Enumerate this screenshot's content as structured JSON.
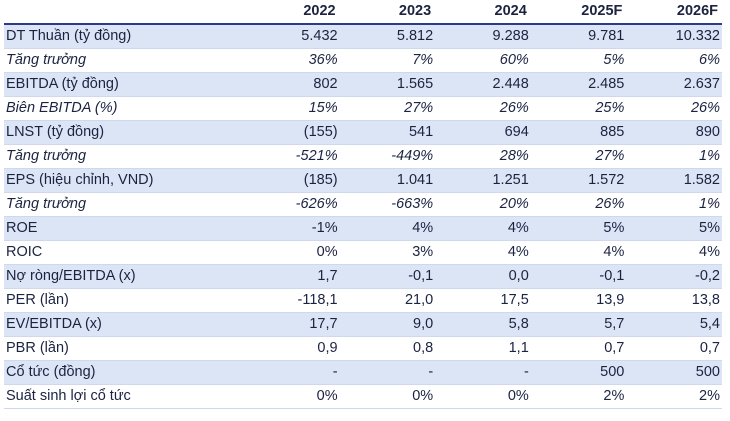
{
  "table": {
    "header": [
      "",
      "2022",
      "2023",
      "2024",
      "2025F",
      "2026F"
    ],
    "rows": [
      {
        "label": "DT Thuần (tỷ đồng)",
        "values": [
          "5.432",
          "5.812",
          "9.288",
          "9.781",
          "10.332"
        ],
        "italic": false,
        "shaded": true
      },
      {
        "label": "Tăng trưởng",
        "values": [
          "36%",
          "7%",
          "60%",
          "5%",
          "6%"
        ],
        "italic": true,
        "shaded": false
      },
      {
        "label": "EBITDA (tỷ đồng)",
        "values": [
          "802",
          "1.565",
          "2.448",
          "2.485",
          "2.637"
        ],
        "italic": false,
        "shaded": true
      },
      {
        "label": "Biên EBITDA (%)",
        "values": [
          "15%",
          "27%",
          "26%",
          "25%",
          "26%"
        ],
        "italic": true,
        "shaded": false
      },
      {
        "label": "LNST (tỷ đồng)",
        "values": [
          "(155)",
          "541",
          "694",
          "885",
          "890"
        ],
        "italic": false,
        "shaded": true
      },
      {
        "label": "Tăng trưởng",
        "values": [
          "-521%",
          "-449%",
          "28%",
          "27%",
          "1%"
        ],
        "italic": true,
        "shaded": false
      },
      {
        "label": "EPS (hiệu chỉnh, VND)",
        "values": [
          "(185)",
          "1.041",
          "1.251",
          "1.572",
          "1.582"
        ],
        "italic": false,
        "shaded": true
      },
      {
        "label": "Tăng trưởng",
        "values": [
          "-626%",
          "-663%",
          "20%",
          "26%",
          "1%"
        ],
        "italic": true,
        "shaded": false
      },
      {
        "label": "ROE",
        "values": [
          "-1%",
          "4%",
          "4%",
          "5%",
          "5%"
        ],
        "italic": false,
        "shaded": true
      },
      {
        "label": "ROIC",
        "values": [
          "0%",
          "3%",
          "4%",
          "4%",
          "4%"
        ],
        "italic": false,
        "shaded": false
      },
      {
        "label": "Nợ ròng/EBITDA (x)",
        "values": [
          "1,7",
          "-0,1",
          "0,0",
          "-0,1",
          "-0,2"
        ],
        "italic": false,
        "shaded": true
      },
      {
        "label": "PER (lần)",
        "values": [
          "-118,1",
          "21,0",
          "17,5",
          "13,9",
          "13,8"
        ],
        "italic": false,
        "shaded": false
      },
      {
        "label": "EV/EBITDA (x)",
        "values": [
          "17,7",
          "9,0",
          "5,8",
          "5,7",
          "5,4"
        ],
        "italic": false,
        "shaded": true
      },
      {
        "label": "PBR (lần)",
        "values": [
          "0,9",
          "0,8",
          "1,1",
          "0,7",
          "0,7"
        ],
        "italic": false,
        "shaded": false
      },
      {
        "label": "Cổ tức (đồng)",
        "values": [
          "-",
          "-",
          "-",
          "500",
          "500"
        ],
        "italic": false,
        "shaded": true
      },
      {
        "label": "Suất sinh lợi cổ tức",
        "values": [
          "0%",
          "0%",
          "0%",
          "2%",
          "2%"
        ],
        "italic": false,
        "shaded": false
      }
    ]
  }
}
